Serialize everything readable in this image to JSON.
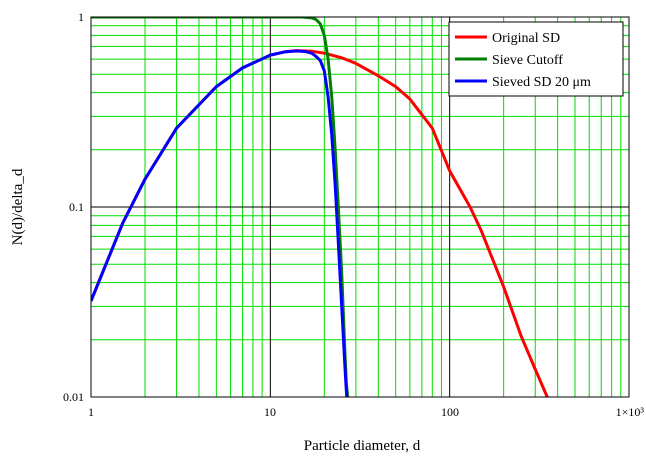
{
  "chart_data": {
    "type": "line",
    "title": "",
    "xlabel": "Particle diameter, d",
    "ylabel": "N(d)/delta_d",
    "x_scale": "log",
    "y_scale": "log",
    "xlim": [
      1,
      1000
    ],
    "ylim": [
      0.01,
      1
    ],
    "grid": true,
    "legend_position": "top-right",
    "x_tick_labels": [
      "1",
      "10",
      "100",
      "1×10³"
    ],
    "y_tick_labels": [
      "1",
      "0.1",
      "0.01"
    ],
    "series": [
      {
        "name": "Original SD",
        "color": "#ff0000",
        "x": [
          1,
          1.5,
          2,
          3,
          5,
          7,
          10,
          12,
          14,
          17,
          20,
          25,
          30,
          40,
          50,
          60,
          80,
          100,
          130,
          150,
          200,
          250,
          300,
          350
        ],
        "y": [
          0.032,
          0.082,
          0.14,
          0.26,
          0.43,
          0.54,
          0.63,
          0.655,
          0.665,
          0.66,
          0.645,
          0.61,
          0.57,
          0.49,
          0.43,
          0.37,
          0.26,
          0.155,
          0.1,
          0.075,
          0.038,
          0.021,
          0.014,
          0.01
        ]
      },
      {
        "name": "Sieve Cutoff",
        "color": "#007f00",
        "x": [
          1,
          5,
          10,
          15,
          17,
          18,
          19,
          20,
          21,
          22,
          23,
          24,
          25,
          26,
          26.5,
          27
        ],
        "y": [
          1,
          1,
          1,
          1,
          0.99,
          0.97,
          0.92,
          0.8,
          0.6,
          0.38,
          0.2,
          0.095,
          0.045,
          0.018,
          0.012,
          0.01
        ]
      },
      {
        "name": "Sieved SD 20 μm",
        "color": "#0000ff",
        "x": [
          1,
          1.5,
          2,
          3,
          5,
          7,
          10,
          12,
          14,
          15,
          16,
          17,
          18,
          19,
          20,
          21,
          22,
          23,
          24,
          25,
          26,
          26.5,
          27
        ],
        "y": [
          0.032,
          0.082,
          0.14,
          0.26,
          0.43,
          0.54,
          0.63,
          0.655,
          0.662,
          0.66,
          0.655,
          0.645,
          0.62,
          0.59,
          0.52,
          0.38,
          0.24,
          0.13,
          0.062,
          0.03,
          0.015,
          0.011,
          0.0085
        ]
      }
    ]
  }
}
